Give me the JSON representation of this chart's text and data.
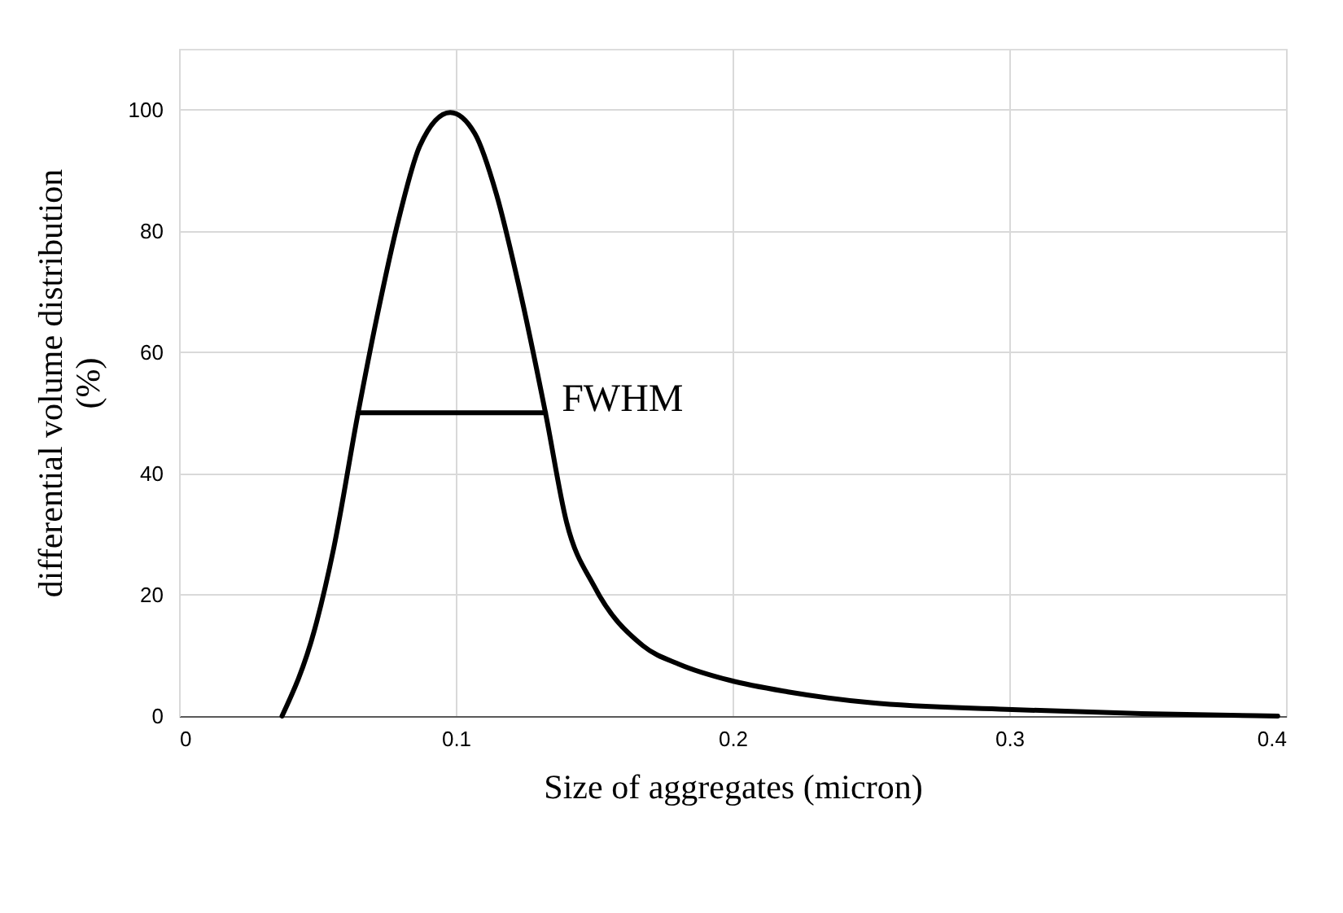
{
  "chart_data": {
    "type": "line",
    "xlabel": "Size of aggregates (micron)",
    "ylabel": "differential volume distribution (%)",
    "xlim": [
      0,
      0.4
    ],
    "xticks": [
      0,
      0.1,
      0.2,
      0.3,
      0.4
    ],
    "ylim": [
      0,
      110
    ],
    "yticks": [
      0,
      20,
      40,
      60,
      80,
      100
    ],
    "grid": true,
    "marker": "none",
    "line_style": "solid",
    "annotations": [
      {
        "text": "FWHM",
        "x": 0.1324,
        "y": 50
      }
    ],
    "series": [
      {
        "color": "#000000",
        "x": [
          0.0372,
          0.049,
          0.0559,
          0.0647,
          0.0716,
          0.0794,
          0.087,
          0.098,
          0.1069,
          0.1147,
          0.1225,
          0.1324,
          0.14,
          0.15,
          0.1676,
          0.181,
          0.199,
          0.22,
          0.25,
          0.299,
          0.348,
          0.397
        ],
        "values": [
          0,
          14.3,
          27.7,
          50,
          66,
          82,
          94,
          99.5,
          96,
          86,
          71.5,
          50,
          32,
          21.4,
          11.6,
          8.5,
          5.9,
          4,
          2.2,
          1.1,
          0.4,
          0
        ]
      },
      {
        "color": "#000000",
        "x": [
          0.0647,
          0.1324
        ],
        "values": [
          50,
          50
        ]
      }
    ]
  }
}
